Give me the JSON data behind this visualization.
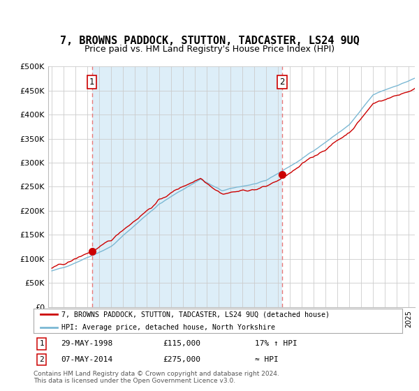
{
  "title": "7, BROWNS PADDOCK, STUTTON, TADCASTER, LS24 9UQ",
  "subtitle": "Price paid vs. HM Land Registry's House Price Index (HPI)",
  "ylim": [
    0,
    500000
  ],
  "yticks": [
    0,
    50000,
    100000,
    150000,
    200000,
    250000,
    300000,
    350000,
    400000,
    450000,
    500000
  ],
  "ytick_labels": [
    "£0",
    "£50K",
    "£100K",
    "£150K",
    "£200K",
    "£250K",
    "£300K",
    "£350K",
    "£400K",
    "£450K",
    "£500K"
  ],
  "sale1": {
    "date_num": 1998.38,
    "price": 115000,
    "label": "1",
    "date_str": "29-MAY-1998",
    "price_str": "£115,000",
    "hpi_str": "17% ↑ HPI"
  },
  "sale2": {
    "date_num": 2014.35,
    "price": 275000,
    "label": "2",
    "date_str": "07-MAY-2014",
    "price_str": "£275,000",
    "hpi_str": "≈ HPI"
  },
  "hpi_color": "#7bb8d4",
  "sale_color": "#cc0000",
  "vline_color": "#e87878",
  "background_color": "#ffffff",
  "shade_color": "#ddeef8",
  "grid_color": "#cccccc",
  "title_fontsize": 11,
  "subtitle_fontsize": 9,
  "tick_fontsize": 8,
  "legend_fontsize": 8,
  "footer_fontsize": 6.5
}
